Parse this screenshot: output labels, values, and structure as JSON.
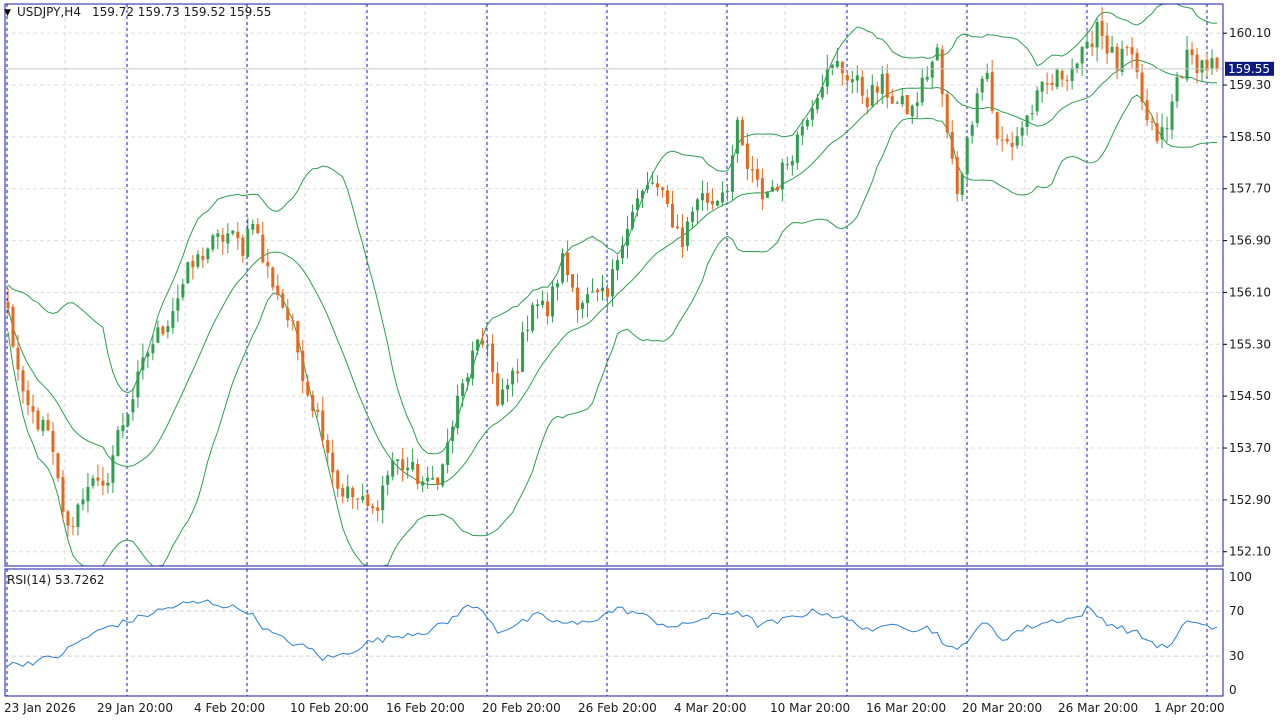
{
  "header": {
    "symbol_label": "USDJPY,H4",
    "ohlc_label": "159.72 159.73 159.52 159.55"
  },
  "indicator": {
    "label": "RSI(14) 53.7262"
  },
  "colors": {
    "up": "#2e9e4f",
    "down": "#e8671c",
    "band": "#2e9e4f",
    "rsi": "#2b7fd0",
    "grid": "#dddddd",
    "separator": "#1a1aa8",
    "price_tag_bg": "#0d1a80",
    "frame": "#1a1aa8"
  },
  "chart_data": [
    {
      "type": "candlestick",
      "title": "USDJPY,H4",
      "ylim": [
        151.88,
        160.55
      ],
      "y_ticks": [
        "160.10",
        "159.30",
        "158.50",
        "157.70",
        "156.90",
        "156.10",
        "155.30",
        "154.50",
        "153.70",
        "152.90",
        "152.10"
      ],
      "x_ticks": [
        "23 Jan 2026",
        "29 Jan 20:00",
        "4 Feb 20:00",
        "10 Feb 20:00",
        "16 Feb 20:00",
        "20 Feb 20:00",
        "26 Feb 20:00",
        "4 Mar 20:00",
        "10 Mar 20:00",
        "16 Mar 20:00",
        "20 Mar 20:00",
        "26 Mar 20:00",
        "1 Apr 20:00"
      ],
      "current_price": "159.55",
      "grid": true,
      "overlay": "Bollinger Bands",
      "anchors": [
        [
          0,
          155.8
        ],
        [
          3,
          154.4
        ],
        [
          8,
          153.9
        ],
        [
          12,
          152.4
        ],
        [
          16,
          153.2
        ],
        [
          19,
          153.0
        ],
        [
          22,
          153.9
        ],
        [
          25,
          154.5
        ],
        [
          28,
          155.2
        ],
        [
          32,
          155.7
        ],
        [
          36,
          156.4
        ],
        [
          40,
          156.8
        ],
        [
          44,
          157.0
        ],
        [
          47,
          156.8
        ],
        [
          49,
          157.3
        ],
        [
          51,
          156.6
        ],
        [
          54,
          156.1
        ],
        [
          57,
          155.5
        ],
        [
          60,
          154.6
        ],
        [
          63,
          154.0
        ],
        [
          66,
          153.1
        ],
        [
          70,
          152.9
        ],
        [
          73,
          152.7
        ],
        [
          77,
          153.5
        ],
        [
          80,
          153.4
        ],
        [
          84,
          153.1
        ],
        [
          87,
          153.4
        ],
        [
          90,
          154.4
        ],
        [
          93,
          155.1
        ],
        [
          96,
          155.4
        ],
        [
          98,
          154.3
        ],
        [
          102,
          155.0
        ],
        [
          105,
          156.0
        ],
        [
          108,
          155.8
        ],
        [
          111,
          156.6
        ],
        [
          114,
          156.0
        ],
        [
          117,
          156.0
        ],
        [
          120,
          156.0
        ],
        [
          123,
          157.0
        ],
        [
          126,
          157.5
        ],
        [
          129,
          157.8
        ],
        [
          132,
          157.4
        ],
        [
          135,
          156.9
        ],
        [
          138,
          157.6
        ],
        [
          141,
          157.5
        ],
        [
          144,
          157.8
        ],
        [
          146,
          158.6
        ],
        [
          148,
          158.0
        ],
        [
          151,
          157.6
        ],
        [
          154,
          157.8
        ],
        [
          157,
          158.3
        ],
        [
          160,
          158.9
        ],
        [
          163,
          159.4
        ],
        [
          166,
          159.6
        ],
        [
          169,
          159.4
        ],
        [
          172,
          159.1
        ],
        [
          175,
          159.3
        ],
        [
          178,
          159.0
        ],
        [
          181,
          158.9
        ],
        [
          184,
          159.5
        ],
        [
          186,
          159.8
        ],
        [
          188,
          158.5
        ],
        [
          190,
          157.7
        ],
        [
          192,
          158.4
        ],
        [
          194,
          159.3
        ],
        [
          196,
          159.5
        ],
        [
          198,
          158.4
        ],
        [
          201,
          158.4
        ],
        [
          204,
          158.8
        ],
        [
          207,
          159.2
        ],
        [
          210,
          159.4
        ],
        [
          213,
          159.6
        ],
        [
          216,
          159.8
        ],
        [
          218,
          160.3
        ],
        [
          220,
          159.9
        ],
        [
          222,
          159.6
        ],
        [
          224,
          159.8
        ],
        [
          226,
          159.4
        ],
        [
          228,
          158.7
        ],
        [
          230,
          158.5
        ],
        [
          232,
          158.6
        ],
        [
          234,
          159.4
        ],
        [
          236,
          159.7
        ],
        [
          240,
          159.6
        ],
        [
          242,
          159.6
        ]
      ]
    },
    {
      "type": "line",
      "title": "RSI(14) 53.7262",
      "ylim": [
        0,
        100
      ],
      "y_ticks": [
        "100",
        "70",
        "30",
        "0"
      ],
      "anchors": [
        [
          0,
          22
        ],
        [
          5,
          25
        ],
        [
          10,
          30
        ],
        [
          15,
          45
        ],
        [
          20,
          56
        ],
        [
          25,
          62
        ],
        [
          30,
          70
        ],
        [
          35,
          76
        ],
        [
          40,
          78
        ],
        [
          44,
          74
        ],
        [
          48,
          70
        ],
        [
          52,
          52
        ],
        [
          55,
          45
        ],
        [
          58,
          40
        ],
        [
          61,
          35
        ],
        [
          63,
          28
        ],
        [
          66,
          30
        ],
        [
          68,
          33
        ],
        [
          72,
          42
        ],
        [
          76,
          46
        ],
        [
          80,
          50
        ],
        [
          84,
          52
        ],
        [
          88,
          60
        ],
        [
          91,
          72
        ],
        [
          93,
          74
        ],
        [
          96,
          66
        ],
        [
          98,
          52
        ],
        [
          102,
          58
        ],
        [
          106,
          66
        ],
        [
          110,
          60
        ],
        [
          114,
          58
        ],
        [
          118,
          64
        ],
        [
          122,
          72
        ],
        [
          126,
          68
        ],
        [
          130,
          60
        ],
        [
          134,
          55
        ],
        [
          138,
          62
        ],
        [
          142,
          66
        ],
        [
          146,
          70
        ],
        [
          150,
          58
        ],
        [
          154,
          60
        ],
        [
          158,
          66
        ],
        [
          162,
          70
        ],
        [
          166,
          65
        ],
        [
          170,
          58
        ],
        [
          174,
          52
        ],
        [
          178,
          60
        ],
        [
          181,
          54
        ],
        [
          184,
          55
        ],
        [
          186,
          50
        ],
        [
          188,
          38
        ],
        [
          190,
          34
        ],
        [
          192,
          45
        ],
        [
          194,
          55
        ],
        [
          196,
          58
        ],
        [
          199,
          45
        ],
        [
          202,
          52
        ],
        [
          206,
          58
        ],
        [
          210,
          62
        ],
        [
          214,
          64
        ],
        [
          216,
          72
        ],
        [
          218,
          66
        ],
        [
          220,
          60
        ],
        [
          222,
          56
        ],
        [
          226,
          50
        ],
        [
          229,
          42
        ],
        [
          231,
          38
        ],
        [
          233,
          40
        ],
        [
          235,
          55
        ],
        [
          237,
          62
        ],
        [
          240,
          56
        ],
        [
          242,
          54
        ]
      ]
    }
  ]
}
